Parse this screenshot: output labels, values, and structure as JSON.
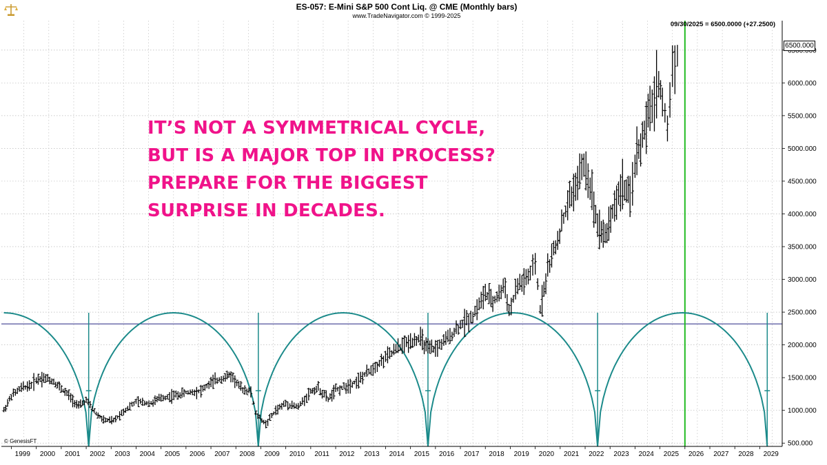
{
  "header": {
    "title": "ES-057:  E-Mini S&P 500 Cont Liq. @ CME  (Monthly bars)",
    "subtitle": "www.TradeNavigator.com © 1999-2025",
    "readout": "09/30/2025 = 6500.0000 (+27.2500)",
    "logo_icon": "trade-navigator-scale-icon"
  },
  "headline": {
    "lines": [
      "IT’S NOT A SYMMETRICAL CYCLE,",
      "BUT IS A MAJOR TOP IN PROCESS?",
      "PREPARE FOR THE BIGGEST",
      "SURPRISE IN DECADES."
    ],
    "color": "#f0138a"
  },
  "footer": {
    "credit": "© GenesisFT"
  },
  "chart_data": {
    "type": "line",
    "x_tick_labels": [
      "1999",
      "2000",
      "2001",
      "2002",
      "2003",
      "2004",
      "2005",
      "2006",
      "2007",
      "2008",
      "2009",
      "2010",
      "2011",
      "2012",
      "2013",
      "2014",
      "2015",
      "2016",
      "2017",
      "2018",
      "2019",
      "2020",
      "2021",
      "2022",
      "2023",
      "2024",
      "2025",
      "2026",
      "2027",
      "2028",
      "2029"
    ],
    "y_tick_labels": [
      "500.000",
      "1000.000",
      "1500.000",
      "2000.000",
      "2500.000",
      "3000.000",
      "3500.000",
      "4000.000",
      "4500.000",
      "5000.000",
      "5500.000",
      "6000.000",
      "6500.000"
    ],
    "ylim": [
      450,
      6950
    ],
    "xlim": [
      1998.6,
      2029.9
    ],
    "last_price_label": "6500.000",
    "grid": true,
    "series": [
      {
        "style": "monthly-bars",
        "color": "#000000",
        "points": [
          {
            "x": 1998.7,
            "y": 1000
          },
          {
            "x": 1999.0,
            "y": 1220
          },
          {
            "x": 1999.4,
            "y": 1340
          },
          {
            "x": 1999.8,
            "y": 1390
          },
          {
            "x": 2000.0,
            "y": 1470
          },
          {
            "x": 2000.3,
            "y": 1500
          },
          {
            "x": 2000.7,
            "y": 1440
          },
          {
            "x": 2001.0,
            "y": 1330
          },
          {
            "x": 2001.3,
            "y": 1230
          },
          {
            "x": 2001.7,
            "y": 1060
          },
          {
            "x": 2002.0,
            "y": 1150
          },
          {
            "x": 2002.4,
            "y": 950
          },
          {
            "x": 2002.7,
            "y": 850
          },
          {
            "x": 2003.1,
            "y": 840
          },
          {
            "x": 2003.5,
            "y": 990
          },
          {
            "x": 2004.0,
            "y": 1130
          },
          {
            "x": 2004.6,
            "y": 1110
          },
          {
            "x": 2005.0,
            "y": 1190
          },
          {
            "x": 2005.6,
            "y": 1230
          },
          {
            "x": 2006.0,
            "y": 1270
          },
          {
            "x": 2006.6,
            "y": 1300
          },
          {
            "x": 2007.0,
            "y": 1420
          },
          {
            "x": 2007.5,
            "y": 1500
          },
          {
            "x": 2007.8,
            "y": 1540
          },
          {
            "x": 2008.2,
            "y": 1340
          },
          {
            "x": 2008.6,
            "y": 1280
          },
          {
            "x": 2008.8,
            "y": 950
          },
          {
            "x": 2009.2,
            "y": 790
          },
          {
            "x": 2009.6,
            "y": 1000
          },
          {
            "x": 2010.0,
            "y": 1110
          },
          {
            "x": 2010.5,
            "y": 1050
          },
          {
            "x": 2011.0,
            "y": 1290
          },
          {
            "x": 2011.3,
            "y": 1340
          },
          {
            "x": 2011.7,
            "y": 1170
          },
          {
            "x": 2012.0,
            "y": 1310
          },
          {
            "x": 2012.5,
            "y": 1380
          },
          {
            "x": 2013.0,
            "y": 1480
          },
          {
            "x": 2013.5,
            "y": 1650
          },
          {
            "x": 2014.0,
            "y": 1800
          },
          {
            "x": 2014.5,
            "y": 1950
          },
          {
            "x": 2015.0,
            "y": 2060
          },
          {
            "x": 2015.4,
            "y": 2100
          },
          {
            "x": 2015.7,
            "y": 1930
          },
          {
            "x": 2016.0,
            "y": 1940
          },
          {
            "x": 2016.5,
            "y": 2100
          },
          {
            "x": 2017.0,
            "y": 2300
          },
          {
            "x": 2017.5,
            "y": 2450
          },
          {
            "x": 2018.0,
            "y": 2780
          },
          {
            "x": 2018.3,
            "y": 2650
          },
          {
            "x": 2018.8,
            "y": 2900
          },
          {
            "x": 2018.95,
            "y": 2500
          },
          {
            "x": 2019.3,
            "y": 2900
          },
          {
            "x": 2019.8,
            "y": 3050
          },
          {
            "x": 2020.0,
            "y": 3250
          },
          {
            "x": 2020.2,
            "y": 2550
          },
          {
            "x": 2020.5,
            "y": 3150
          },
          {
            "x": 2020.9,
            "y": 3600
          },
          {
            "x": 2021.3,
            "y": 4150
          },
          {
            "x": 2021.7,
            "y": 4500
          },
          {
            "x": 2021.95,
            "y": 4750
          },
          {
            "x": 2022.2,
            "y": 4450
          },
          {
            "x": 2022.5,
            "y": 3850
          },
          {
            "x": 2022.8,
            "y": 3650
          },
          {
            "x": 2023.1,
            "y": 4050
          },
          {
            "x": 2023.5,
            "y": 4450
          },
          {
            "x": 2023.8,
            "y": 4200
          },
          {
            "x": 2024.0,
            "y": 4800
          },
          {
            "x": 2024.3,
            "y": 5150
          },
          {
            "x": 2024.6,
            "y": 5550
          },
          {
            "x": 2024.95,
            "y": 6050
          },
          {
            "x": 2025.1,
            "y": 5700
          },
          {
            "x": 2025.3,
            "y": 5300
          },
          {
            "x": 2025.5,
            "y": 6250
          },
          {
            "x": 2025.7,
            "y": 6500
          }
        ]
      },
      {
        "style": "cycle-arcs",
        "color": "#1b8a8a",
        "troughs": [
          2002.1,
          2008.9,
          2015.7,
          2022.5,
          2029.3
        ],
        "peak_y": 2490,
        "trough_y": 450
      }
    ],
    "annotations": {
      "horizontal_line_y": 2320,
      "horizontal_line_color": "#3b3b8f",
      "vertical_line_x": 2026.0,
      "vertical_line_color": "#22bb22"
    }
  }
}
